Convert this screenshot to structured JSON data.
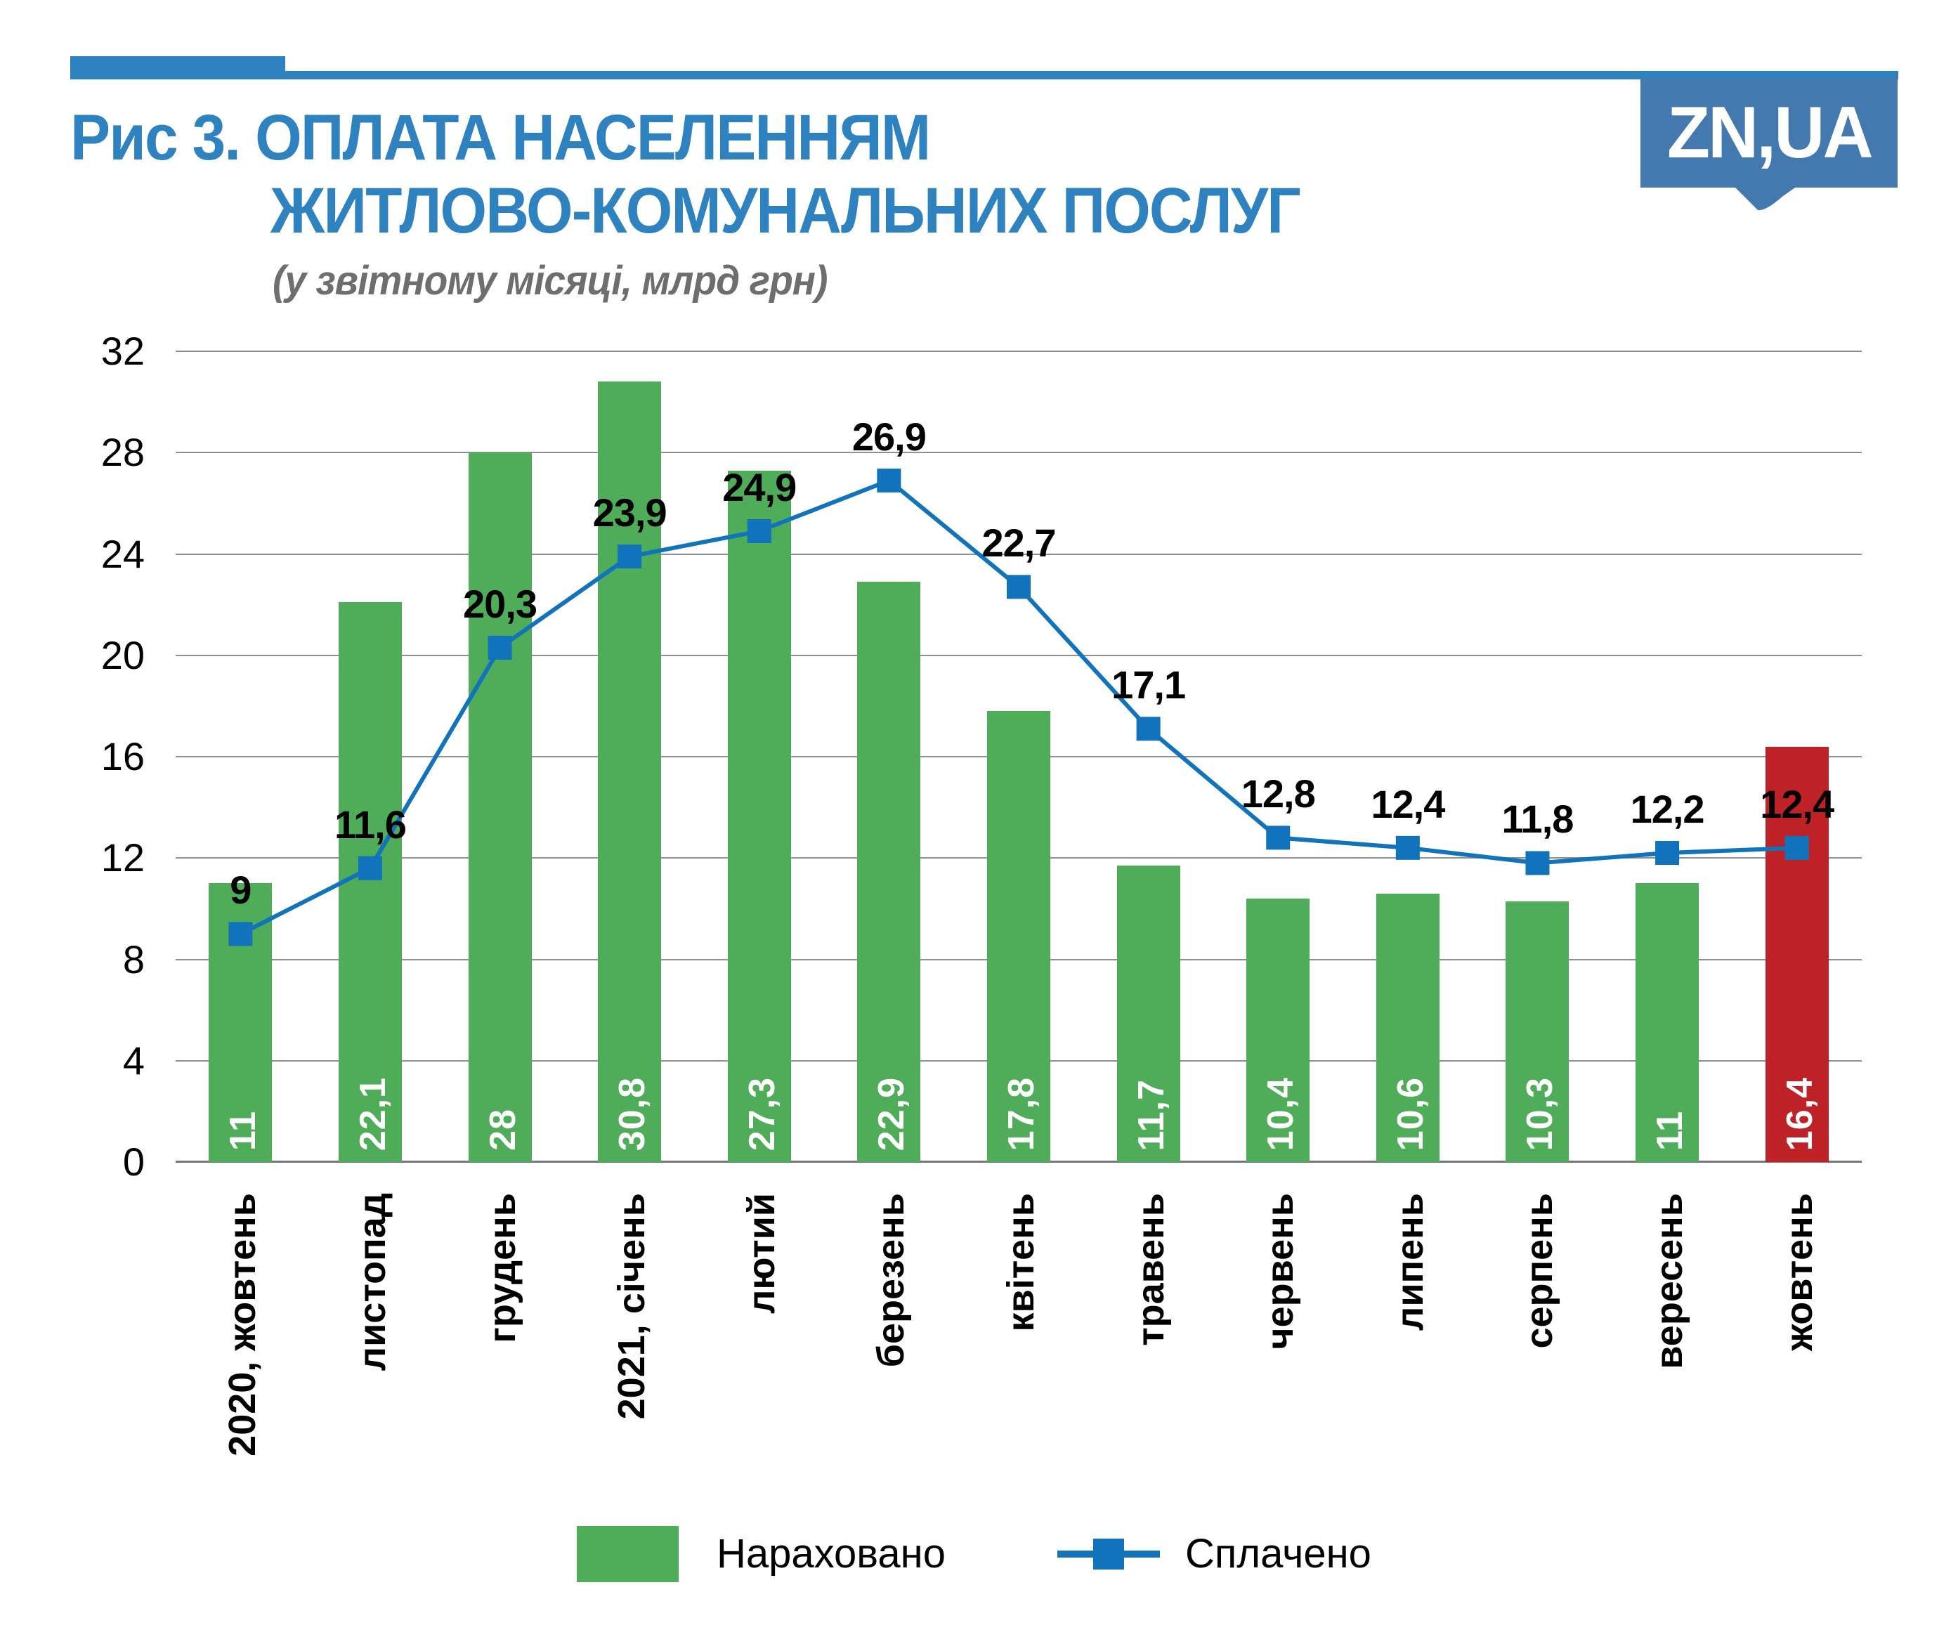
{
  "header": {
    "title_line1": "Рис 3. ОПЛАТА НАСЕЛЕННЯМ",
    "title_line2": "ЖИТЛОВО-КОМУНАЛЬНИХ ПОСЛУГ",
    "subtitle": "(у звітному місяці, млрд грн)",
    "logo_text": "ZN,UA"
  },
  "legend": {
    "bar_label": "Нараховано",
    "line_label": "Сплачено"
  },
  "colors": {
    "accent_blue": "#2E82C0",
    "decor_blue": "#2E82C0",
    "logo_blue": "#4379AE",
    "bar_green": "#4FAC58",
    "bar_red": "#BE2126",
    "line_blue": "#1173BB",
    "gridline_gray": "#8F8F8F",
    "axis_gray": "#757575",
    "subtitle_gray": "#6D6E70",
    "text_black": "#000000",
    "bar_label_white": "#FFFFFF"
  },
  "chart_data": {
    "type": "bar+line",
    "title": "Рис 3. ОПЛАТА НАСЕЛЕННЯМ ЖИТЛОВО-КОМУНАЛЬНИХ ПОСЛУГ",
    "subtitle": "(у звітному місяці, млрд грн)",
    "categories": [
      "2020, жовтень",
      "листопад",
      "грудень",
      "2021, січень",
      "лютий",
      "березень",
      "квітень",
      "травень",
      "червень",
      "липень",
      "серпень",
      "вересень",
      "жовтень"
    ],
    "ylim": [
      0,
      32
    ],
    "yticks": [
      0,
      4,
      8,
      12,
      16,
      20,
      24,
      28,
      32
    ],
    "grid": "horizontal",
    "legend_position": "bottom",
    "highlight_index": 12,
    "series": [
      {
        "name": "Нараховано",
        "type": "bar",
        "values": [
          11,
          22.1,
          28,
          30.8,
          27.3,
          22.9,
          17.8,
          11.7,
          10.4,
          10.6,
          10.3,
          11,
          16.4
        ],
        "labels": [
          "11",
          "22,1",
          "28",
          "30,8",
          "27,3",
          "22,9",
          "17,8",
          "11,7",
          "10,4",
          "10,6",
          "10,3",
          "11",
          "16,4"
        ]
      },
      {
        "name": "Сплачено",
        "type": "line",
        "values": [
          9,
          11.6,
          20.3,
          23.9,
          24.9,
          26.9,
          22.7,
          17.1,
          12.8,
          12.4,
          11.8,
          12.2,
          12.4
        ],
        "labels": [
          "9",
          "11,6",
          "20,3",
          "23,9",
          "24,9",
          "26,9",
          "22,7",
          "17,1",
          "12,8",
          "12,4",
          "11,8",
          "12,2",
          "12,4"
        ]
      }
    ]
  }
}
